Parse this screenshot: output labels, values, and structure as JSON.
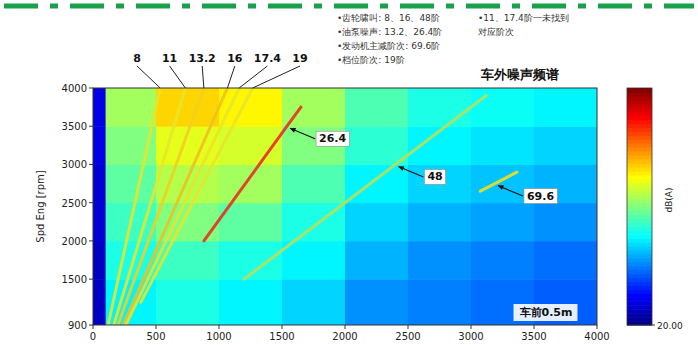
{
  "chart_data": {
    "type": "heatmap",
    "title": "车外噪声频谱",
    "annotations": {
      "notes": [
        "•齿轮啸叫: 8、16、48阶",
        "•油泵噪声: 13.2、26.4阶",
        "•发动机主减阶次: 69.6阶",
        "•档位阶次: 19阶"
      ],
      "unmatched": [
        "•11、17.4阶一未找到",
        "对应阶次"
      ],
      "location_note": "车前0.5m"
    },
    "y_label": "Spd Eng [rpm]",
    "xlim": [
      0,
      4000
    ],
    "ylim": [
      900,
      4000
    ],
    "xticks": [
      0,
      500,
      1000,
      1500,
      2000,
      2500,
      3000,
      3500,
      4000
    ],
    "yticks": [
      900,
      1500,
      2000,
      2500,
      3000,
      3500,
      4000
    ],
    "heatmap": {
      "x_edges": [
        0,
        100,
        500,
        1000,
        1500,
        2000,
        2500,
        3000,
        3500,
        4000
      ],
      "y_edges": [
        900,
        1500,
        2000,
        2500,
        3000,
        3500,
        4000
      ],
      "values": [
        [
          24,
          42,
          44,
          42,
          40,
          36,
          35,
          34,
          33
        ],
        [
          24,
          44,
          46,
          44,
          42,
          38,
          36,
          35,
          34
        ],
        [
          25,
          46,
          50,
          48,
          44,
          40,
          38,
          37,
          36
        ],
        [
          25,
          48,
          53,
          52,
          47,
          42,
          40,
          39,
          38
        ],
        [
          26,
          50,
          56,
          55,
          50,
          45,
          42,
          41,
          40
        ],
        [
          26,
          52,
          60,
          58,
          52,
          47,
          44,
          43,
          42
        ]
      ]
    },
    "colorbar": {
      "range": [
        20,
        80
      ],
      "ticks": [
        {
          "value": 20,
          "label": "20.00"
        }
      ],
      "label": "dB(A)"
    },
    "series": [
      {
        "name": "8",
        "color": "#e6e62a",
        "x": [
          120,
          533
        ],
        "values": [
          900,
          4000
        ]
      },
      {
        "name": "11",
        "color": "#e6e62a",
        "x": [
          165,
          733
        ],
        "values": [
          900,
          4000
        ]
      },
      {
        "name": "13.2",
        "color": "#f0d020",
        "x": [
          198,
          880
        ],
        "values": [
          900,
          4000
        ]
      },
      {
        "name": "16",
        "color": "#f0c020",
        "x": [
          240,
          1067
        ],
        "values": [
          900,
          4000
        ]
      },
      {
        "name": "17.4",
        "color": "#e6e62a",
        "x": [
          261,
          1160
        ],
        "values": [
          900,
          4000
        ]
      },
      {
        "name": "19",
        "color": "#e6e62a",
        "x": [
          380,
          1267
        ],
        "values": [
          1200,
          4000
        ]
      },
      {
        "name": "26.4",
        "color": "#e83020",
        "x": [
          880,
          1540,
          1650
        ],
        "values": [
          2000,
          3500,
          3750
        ]
      },
      {
        "name": "48",
        "color": "#b8e05a",
        "x": [
          1200,
          2400,
          3120
        ],
        "values": [
          1500,
          3000,
          3900
        ]
      },
      {
        "name": "69.6",
        "color": "#f0e020",
        "x": [
          3074,
          3190,
          3364
        ],
        "values": [
          2650,
          2750,
          2900
        ]
      }
    ]
  }
}
